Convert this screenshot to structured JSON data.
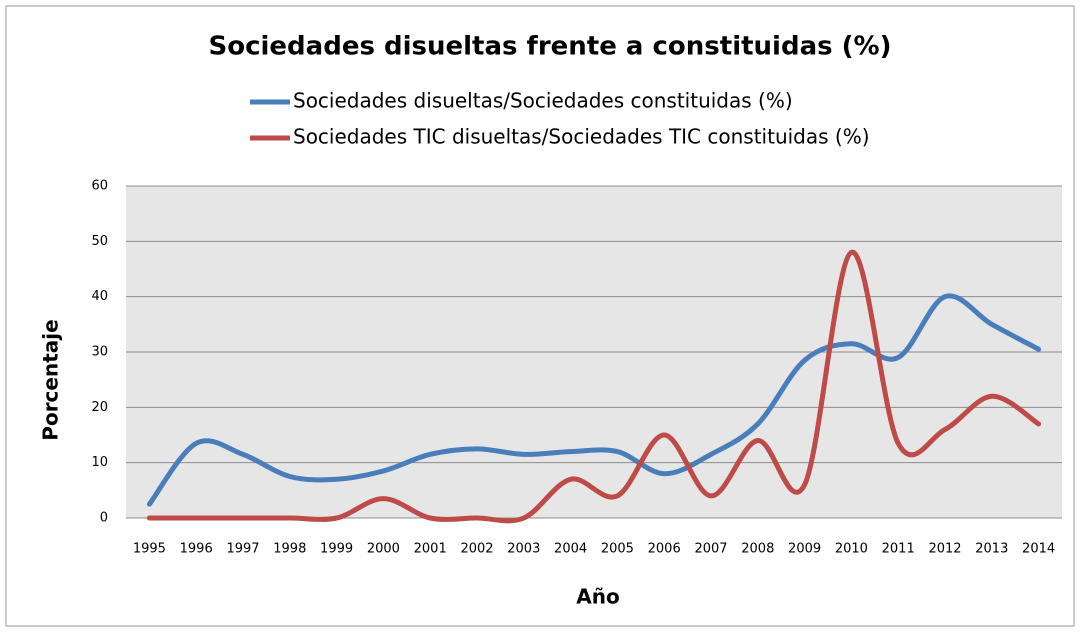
{
  "chart_data": {
    "type": "line",
    "title": "Sociedades disueltas frente  a constituidas (%)",
    "x_label": "Año",
    "y_label": "Porcentaje",
    "categories": [
      "1995",
      "1996",
      "1997",
      "1998",
      "1999",
      "2000",
      "2001",
      "2002",
      "2003",
      "2004",
      "2005",
      "2006",
      "2007",
      "2008",
      "2009",
      "2010",
      "2011",
      "2012",
      "2013",
      "2014"
    ],
    "series": [
      {
        "name": "Sociedades disueltas/Sociedades constituidas (%)",
        "color": "#4a7ebb",
        "values": [
          2.5,
          13.5,
          11.5,
          7.5,
          7,
          8.5,
          11.5,
          12.5,
          11.5,
          12,
          12,
          8,
          11.5,
          17,
          28.5,
          31.5,
          29,
          40,
          35,
          30.5
        ]
      },
      {
        "name": "Sociedades TIC disueltas/Sociedades TIC constituidas (%)",
        "color": "#be4b48",
        "values": [
          0,
          0,
          0,
          0,
          0,
          3.5,
          0,
          0,
          0,
          7,
          4,
          15,
          4,
          14,
          6,
          48,
          13.5,
          16,
          22,
          17
        ]
      }
    ],
    "ylim": [
      0,
      60
    ],
    "yticks": [
      0,
      10,
      20,
      30,
      40,
      50,
      60
    ],
    "grid": true,
    "smooth": true,
    "legend": "top"
  }
}
